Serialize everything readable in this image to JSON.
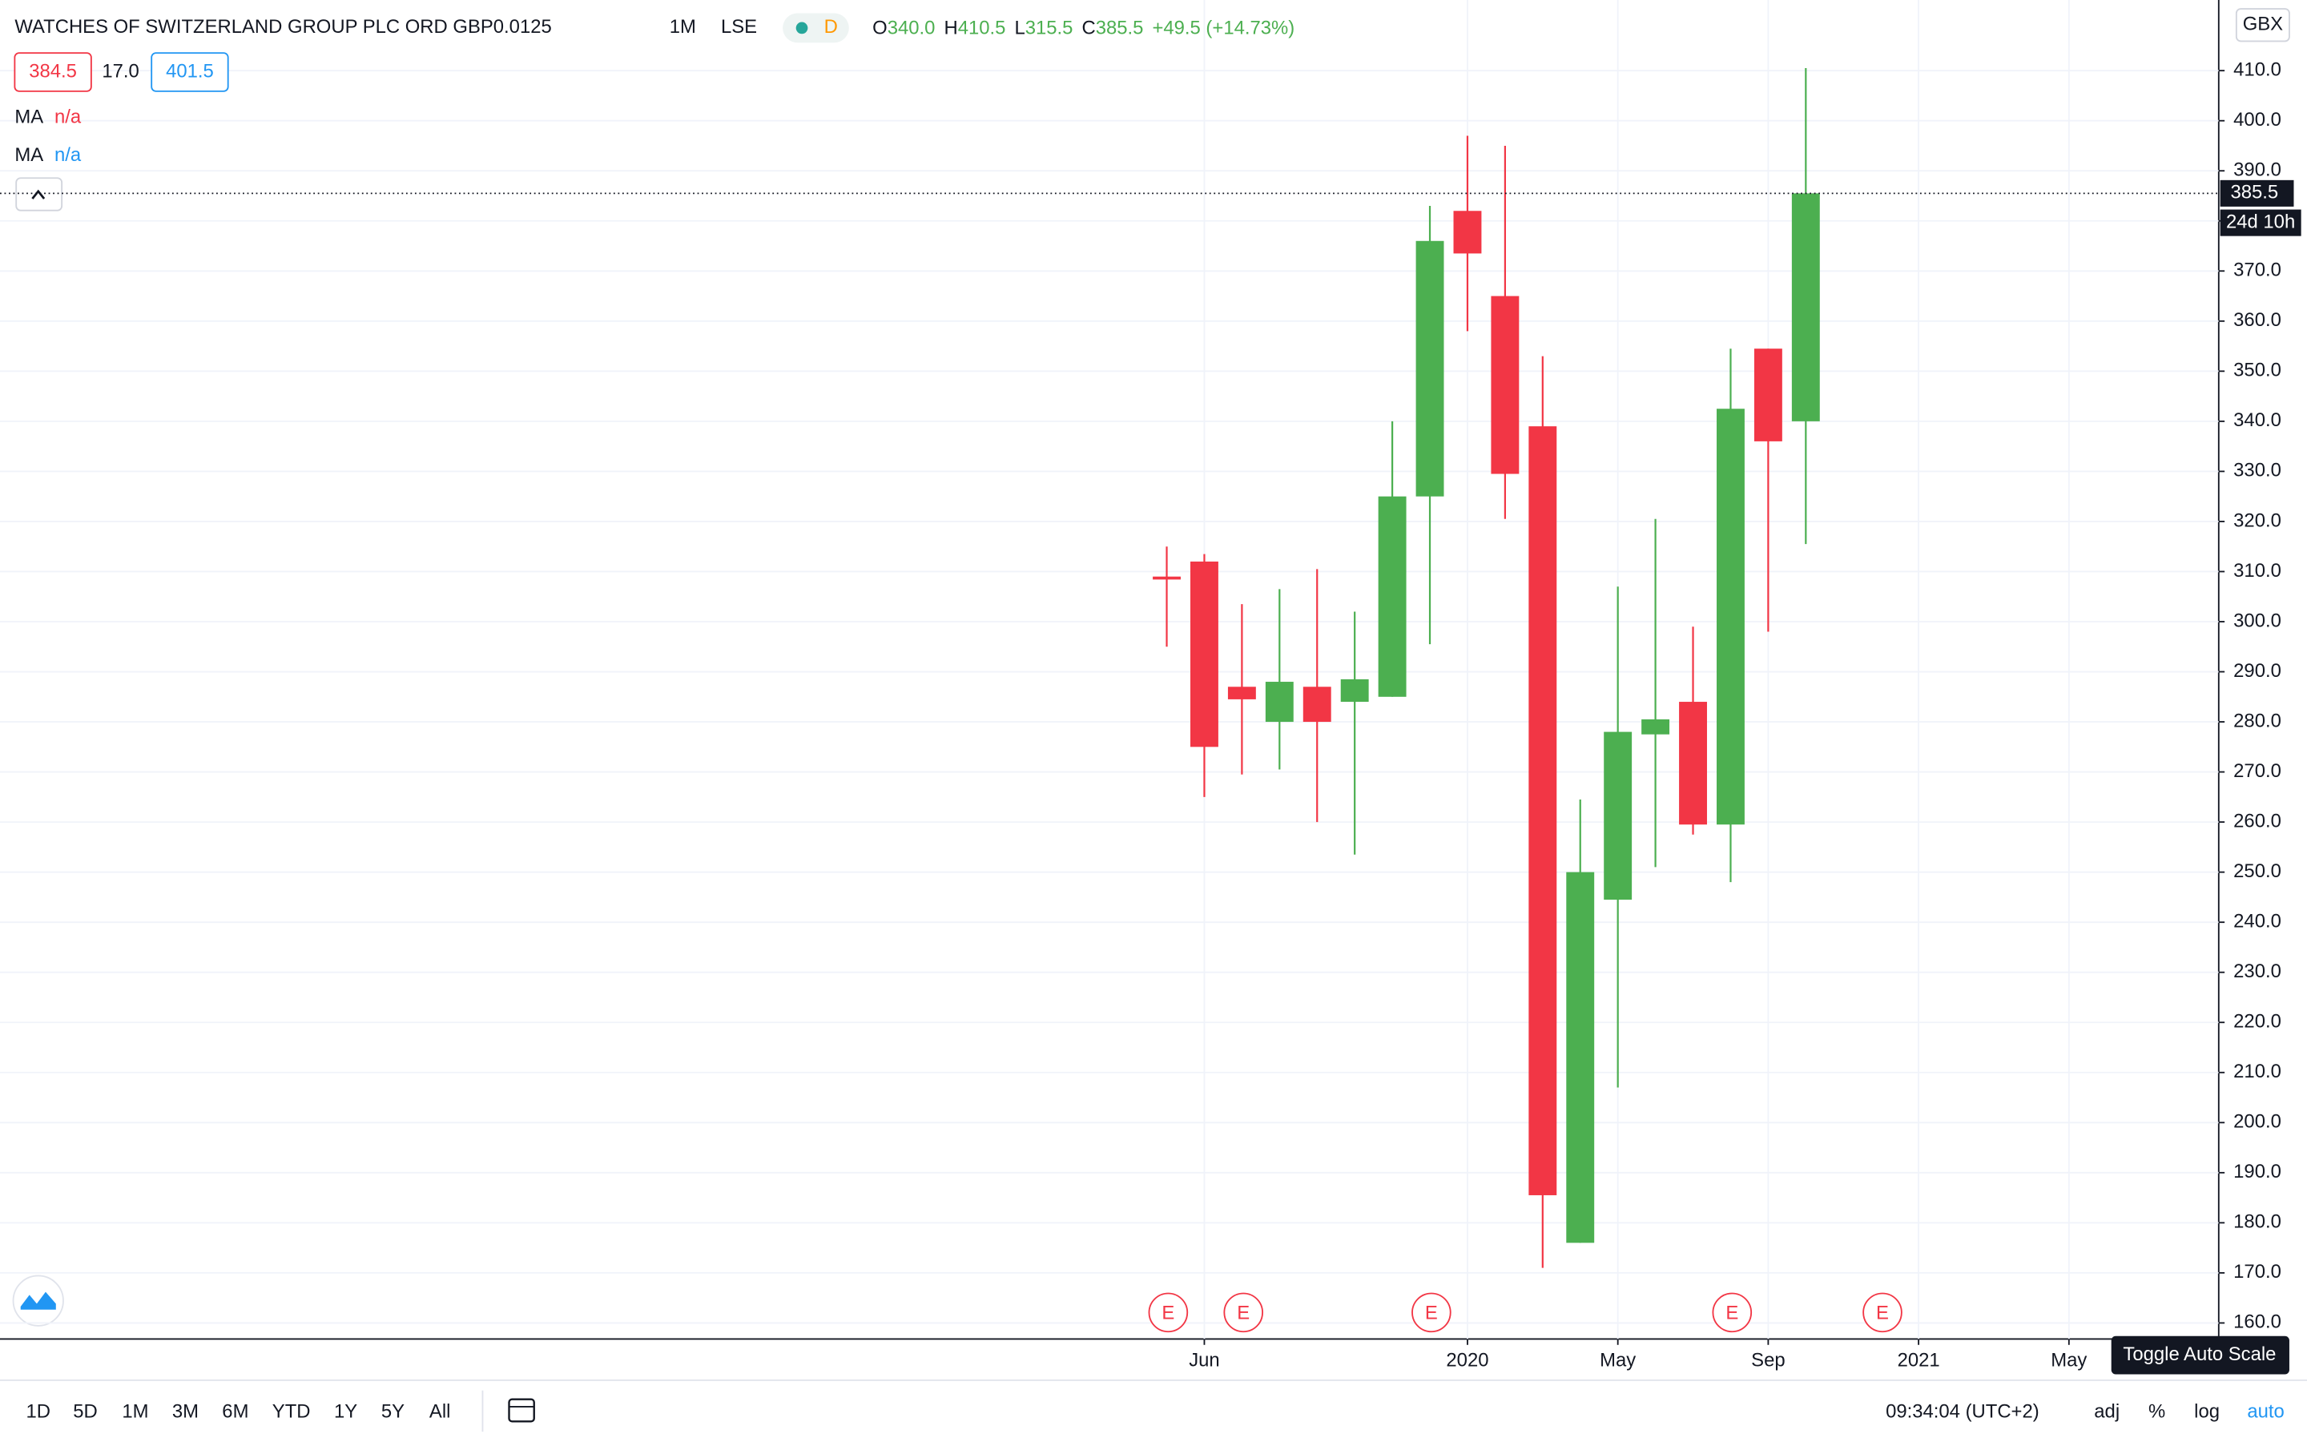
{
  "chart_data": {
    "type": "candlestick",
    "title": "WATCHES OF SWITZERLAND GROUP PLC ORD GBP0.0125",
    "interval": "1M",
    "exchange": "LSE",
    "status_badge": "D",
    "ohlc_labels": [
      "O",
      "H",
      "L",
      "C"
    ],
    "ohlc_values": [
      "340.0",
      "410.5",
      "315.5",
      "385.5"
    ],
    "change": "+49.5 (+14.73%)",
    "bid": "384.5",
    "spread": "17.0",
    "ask": "401.5",
    "ma_labels": [
      "MA",
      "MA"
    ],
    "ma_values": [
      "n/a",
      "n/a"
    ],
    "currency": "GBX",
    "last_price": 385.5,
    "countdown": "24d 10h",
    "earnings_markers": [
      "E",
      "E",
      "E",
      "E",
      "E"
    ],
    "up_color": "#4caf50",
    "down_color": "#f23645",
    "categories": [
      null,
      "Jun",
      null,
      null,
      null,
      null,
      null,
      null,
      "2020",
      null,
      null,
      null,
      "May",
      null,
      null,
      null,
      "Sep",
      null,
      null,
      null,
      "2021",
      null,
      null,
      null,
      "May"
    ],
    "open": [
      309,
      312,
      287,
      280,
      287,
      284,
      285,
      325,
      382,
      365,
      339,
      176,
      244.5,
      277.5,
      284,
      259.5,
      354.5,
      340,
      null,
      null,
      null,
      null,
      null,
      null,
      null
    ],
    "high": [
      315,
      313.5,
      303.5,
      306.5,
      310.5,
      302,
      340,
      383,
      397,
      395,
      353,
      264.5,
      307,
      320.5,
      299,
      354.5,
      354.5,
      410.5,
      null,
      null,
      null,
      null,
      null,
      null,
      null
    ],
    "low": [
      295,
      265,
      269.5,
      270.5,
      260,
      253.5,
      285,
      295.5,
      358,
      320.5,
      171,
      176,
      207,
      251,
      257.5,
      248,
      298,
      315.5,
      null,
      null,
      null,
      null,
      null,
      null,
      null
    ],
    "close": [
      308.5,
      275,
      284.5,
      288,
      280,
      288.5,
      325,
      376,
      373.5,
      329.5,
      185.5,
      250,
      278,
      280.5,
      259.5,
      342.5,
      336,
      385.5,
      null,
      null,
      null,
      null,
      null,
      null,
      null
    ],
    "ylim": [
      156.8,
      424.1
    ],
    "yticks": [
      {
        "value": 160,
        "label": "160.0"
      },
      {
        "value": 170,
        "label": "170.0"
      },
      {
        "value": 180,
        "label": "180.0"
      },
      {
        "value": 190,
        "label": "190.0"
      },
      {
        "value": 200,
        "label": "200.0"
      },
      {
        "value": 210,
        "label": "210.0"
      },
      {
        "value": 220,
        "label": "220.0"
      },
      {
        "value": 230,
        "label": "230.0"
      },
      {
        "value": 240,
        "label": "240.0"
      },
      {
        "value": 250,
        "label": "250.0"
      },
      {
        "value": 260,
        "label": "260.0"
      },
      {
        "value": 270,
        "label": "270.0"
      },
      {
        "value": 280,
        "label": "280.0"
      },
      {
        "value": 290,
        "label": "290.0"
      },
      {
        "value": 300,
        "label": "300.0"
      },
      {
        "value": 310,
        "label": "310.0"
      },
      {
        "value": 320,
        "label": "320.0"
      },
      {
        "value": 330,
        "label": "330.0"
      },
      {
        "value": 340,
        "label": "340.0"
      },
      {
        "value": 350,
        "label": "350.0"
      },
      {
        "value": 360,
        "label": "360.0"
      },
      {
        "value": 370,
        "label": "370.0"
      },
      {
        "value": 380,
        "label": "380.0"
      },
      {
        "value": 390,
        "label": "390.0"
      },
      {
        "value": 400,
        "label": "400.0"
      },
      {
        "value": 410,
        "label": "410.0"
      }
    ],
    "grid": true
  },
  "toolbar": {
    "ranges": [
      "1D",
      "5D",
      "1M",
      "3M",
      "6M",
      "YTD",
      "1Y",
      "5Y",
      "All"
    ],
    "clock": "09:34:04 (UTC+2)",
    "options": [
      "adj",
      "%",
      "log",
      "auto"
    ],
    "tooltip": "Toggle Auto Scale"
  }
}
